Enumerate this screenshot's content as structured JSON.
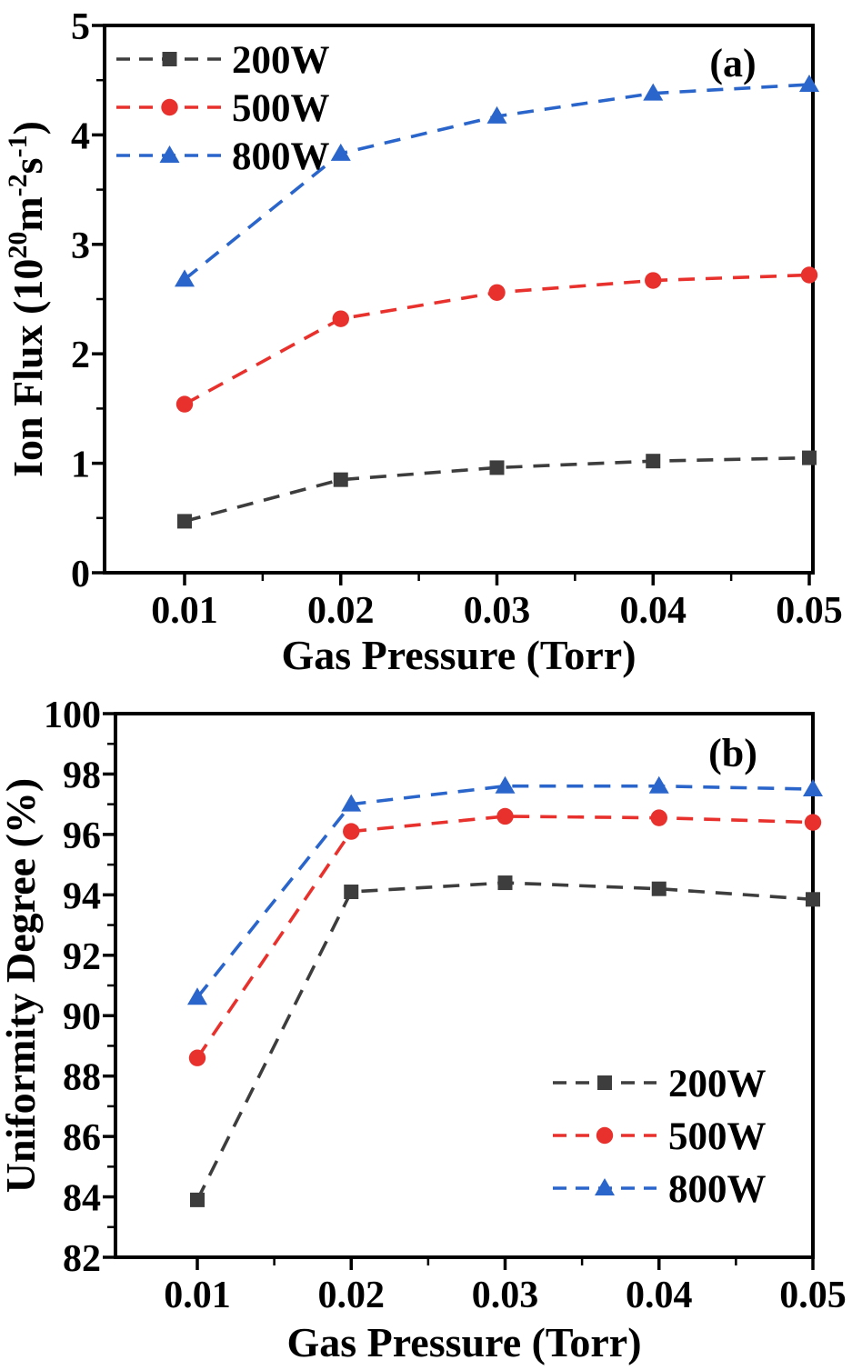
{
  "figure": {
    "background": "#ffffff",
    "axis_color": "#000000"
  },
  "chart_data": [
    {
      "panel": "a",
      "type": "line",
      "panel_tag": "(a)",
      "xlabel": "Gas Pressure (Torr)",
      "ylabel": "Ion Flux (10^20 m^-2 s^-1)",
      "ylabel_rich": [
        {
          "t": "Ion Flux (10"
        },
        {
          "t": "20",
          "sup": true
        },
        {
          "t": "m"
        },
        {
          "t": "-2",
          "sup": true
        },
        {
          "t": "s"
        },
        {
          "t": "-1",
          "sup": true
        },
        {
          "t": ")"
        }
      ],
      "x": [
        0.01,
        0.02,
        0.03,
        0.04,
        0.05
      ],
      "x_tick_labels": [
        "0.01",
        "0.02",
        "0.03",
        "0.04",
        "0.05"
      ],
      "ylim": [
        0,
        5
      ],
      "y_ticks": [
        0,
        1,
        2,
        3,
        4,
        5
      ],
      "y_tick_labels": [
        "0",
        "1",
        "2",
        "3",
        "4",
        "5"
      ],
      "grid": false,
      "line_style": "dashed",
      "legend_position": "top-left",
      "series": [
        {
          "name": "200W",
          "color": "#3d3d3d",
          "marker": "square",
          "values": [
            0.47,
            0.85,
            0.96,
            1.02,
            1.05
          ]
        },
        {
          "name": "500W",
          "color": "#e8312c",
          "marker": "circle",
          "values": [
            1.54,
            2.32,
            2.56,
            2.67,
            2.72
          ]
        },
        {
          "name": "800W",
          "color": "#2a65cb",
          "marker": "triangle",
          "values": [
            2.68,
            3.83,
            4.17,
            4.38,
            4.46
          ]
        }
      ]
    },
    {
      "panel": "b",
      "type": "line",
      "panel_tag": "(b)",
      "xlabel": "Gas Pressure (Torr)",
      "ylabel": "Uniformity Degree (%)",
      "x": [
        0.01,
        0.02,
        0.03,
        0.04,
        0.05
      ],
      "x_tick_labels": [
        "0.01",
        "0.02",
        "0.03",
        "0.04",
        "0.05"
      ],
      "ylim": [
        82,
        100
      ],
      "y_ticks": [
        82,
        84,
        86,
        88,
        90,
        92,
        94,
        96,
        98,
        100
      ],
      "y_tick_labels": [
        "82",
        "84",
        "86",
        "88",
        "90",
        "92",
        "94",
        "96",
        "98",
        "100"
      ],
      "grid": false,
      "line_style": "dashed",
      "legend_position": "bottom-right",
      "series": [
        {
          "name": "200W",
          "color": "#3d3d3d",
          "marker": "square",
          "values": [
            83.9,
            94.1,
            94.4,
            94.2,
            93.85
          ]
        },
        {
          "name": "500W",
          "color": "#e8312c",
          "marker": "circle",
          "values": [
            88.6,
            96.1,
            96.6,
            96.55,
            96.4
          ]
        },
        {
          "name": "800W",
          "color": "#2a65cb",
          "marker": "triangle",
          "values": [
            90.6,
            97.0,
            97.6,
            97.6,
            97.5
          ]
        }
      ]
    }
  ]
}
